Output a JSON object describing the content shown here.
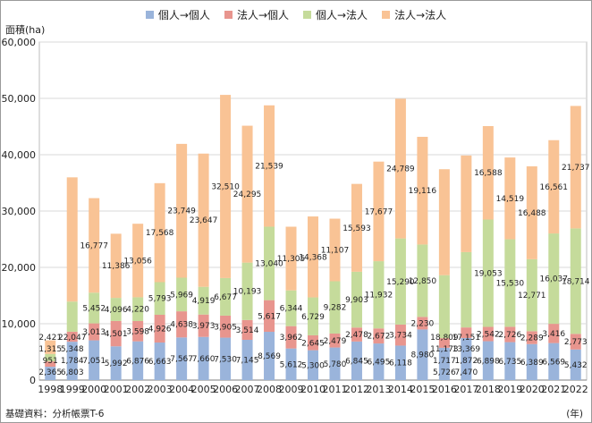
{
  "chart_data": {
    "type": "bar",
    "stacked": true,
    "ylabel": "面積(ha)",
    "xlabel": "(年)",
    "ylim": [
      0,
      60000
    ],
    "yticks": [
      0,
      10000,
      20000,
      30000,
      40000,
      50000,
      60000
    ],
    "ytick_labels": [
      "0",
      "10,000",
      "20,000",
      "30,000",
      "40,000",
      "50,000",
      "60,000"
    ],
    "grid": true,
    "legend_position": "top",
    "categories": [
      "1998",
      "1999",
      "2000",
      "2001",
      "2002",
      "2003",
      "2004",
      "2005",
      "2006",
      "2007",
      "2008",
      "2009",
      "2010",
      "2011",
      "2012",
      "2013",
      "2014",
      "2015",
      "2016",
      "2017",
      "2018",
      "2019",
      "2020",
      "2021",
      "2022"
    ],
    "series": [
      {
        "name": "個人→個人",
        "color": "#9ab4db",
        "values": [
          2365,
          6803,
          7051,
          5992,
          6876,
          6663,
          7567,
          7660,
          7530,
          7145,
          8569,
          5612,
          5300,
          5780,
          6845,
          6495,
          6118,
          8980,
          5726,
          7470,
          6898,
          6735,
          6389,
          6569,
          5432
        ],
        "labels": [
          "2,365",
          "6,803",
          "7,051",
          "5,992",
          "6,876",
          "6,663",
          "7,567",
          "7,660",
          "7,530",
          "7,145",
          "8,569",
          "5,612",
          "5,300",
          "5,780",
          "6,845",
          "6,495",
          "6,118",
          "8,980",
          "5,726",
          "7,470",
          "6,898",
          "6,735",
          "6,389",
          "6,569",
          "5,432"
        ]
      },
      {
        "name": "法人→個人",
        "color": "#e8958e",
        "values": [
          951,
          1784,
          3013,
          4501,
          3598,
          4926,
          4638,
          3973,
          3905,
          3514,
          5617,
          3962,
          2645,
          2479,
          2478,
          2672,
          3734,
          2230,
          1717,
          1872,
          2542,
          2726,
          2289,
          3416,
          2773
        ],
        "labels": [
          "951",
          "1,784",
          "3,013",
          "4,501",
          "3,598",
          "4,926",
          "4,638",
          "3,973",
          "3,905",
          "3,514",
          "5,617",
          "3,962",
          "2,645",
          "2,479",
          "2,478",
          "2,672",
          "3,734",
          "2,230",
          "1,717",
          "1,872",
          "2,542",
          "2,726",
          "2,289",
          "3,416",
          "2,773"
        ]
      },
      {
        "name": "個人→法人",
        "color": "#c5db9b",
        "values": [
          1315,
          5348,
          5452,
          4096,
          4220,
          5793,
          5969,
          4919,
          6677,
          10193,
          13040,
          6344,
          6729,
          9282,
          9903,
          11932,
          15290,
          12850,
          11173,
          13369,
          19053,
          15530,
          12771,
          16037,
          18714
        ],
        "labels": [
          "1,315",
          "5,348",
          "5,452",
          "4,096",
          "4,220",
          "5,793",
          "5,969",
          "4,919",
          "6,677",
          "10,193",
          "13,040",
          "6,344",
          "6,729",
          "9,282",
          "9,903",
          "11,932",
          "15,290",
          "12,850",
          "11,173",
          "13,369",
          "19,053",
          "15,530",
          "12,771",
          "16,037",
          "18,714"
        ]
      },
      {
        "name": "法人→法人",
        "color": "#f9c395",
        "values": [
          2421,
          22047,
          16777,
          11386,
          13056,
          17568,
          23749,
          23647,
          32510,
          24295,
          21539,
          11305,
          14368,
          11107,
          15593,
          17677,
          24789,
          19116,
          18809,
          17151,
          16588,
          14519,
          16488,
          16561,
          21737
        ],
        "labels": [
          "2,421",
          "22,047",
          "16,777",
          "11,386",
          "13,056",
          "17,568",
          "23,749",
          "23,647",
          "32,510",
          "24,295",
          "21,539",
          "11,305",
          "14,368",
          "11,107",
          "15,593",
          "17,677",
          "24,789",
          "19,116",
          "18,809",
          "17,151",
          "16,588",
          "14,519",
          "16,488",
          "16,561",
          "21,737"
        ]
      }
    ]
  },
  "footer": {
    "source": "基礎資料：分析帳票T-6",
    "x_unit": "(年)"
  }
}
